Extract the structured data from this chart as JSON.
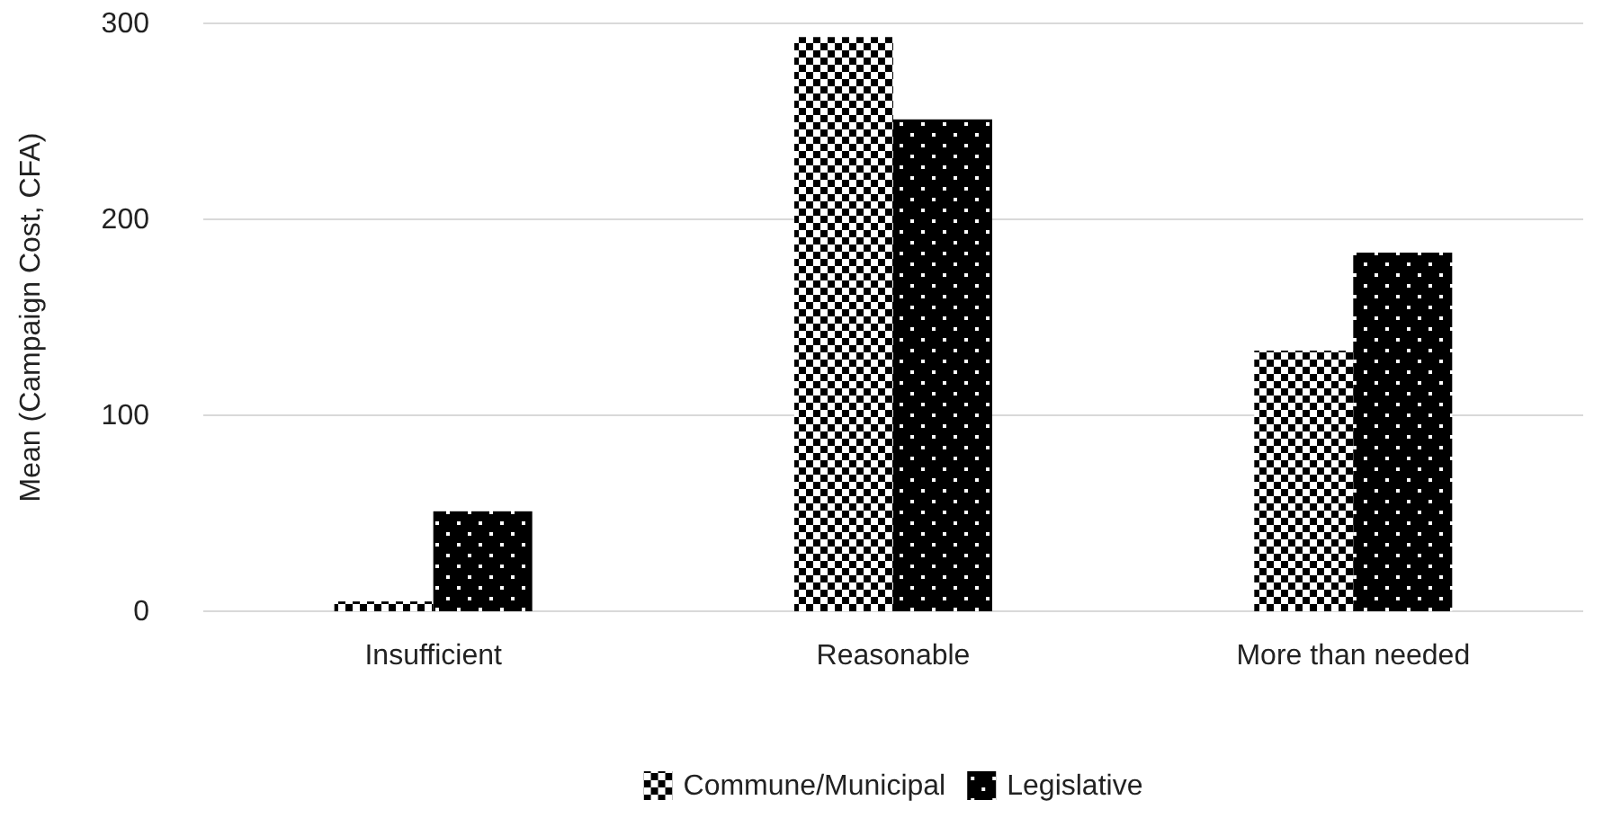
{
  "chart_data": {
    "type": "bar",
    "ylabel": "Mean (Campaign Cost, CFA)",
    "categories": [
      "Insufficient",
      "Reasonable",
      "More than needed"
    ],
    "series": [
      {
        "name": "Commune/Municipal",
        "color": "#000000",
        "values": [
          5,
          293,
          133
        ]
      },
      {
        "name": "Legislative",
        "color": "#000000",
        "values": [
          51,
          251,
          183
        ]
      }
    ],
    "ylim": [
      0,
      300
    ],
    "yticks": [
      0,
      100,
      200,
      300
    ],
    "grid": "y",
    "legend": "bottom"
  }
}
